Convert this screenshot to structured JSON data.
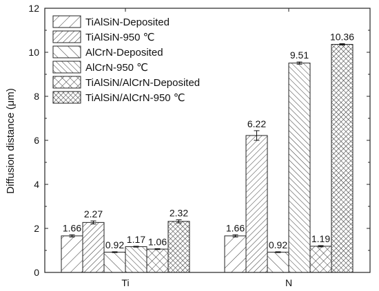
{
  "chart_data": {
    "type": "bar",
    "title": "",
    "xlabel": "",
    "ylabel": "Diffusion distance (μm)",
    "ylim": [
      0,
      12
    ],
    "yticks": [
      0,
      2,
      4,
      6,
      8,
      10,
      12
    ],
    "categories": [
      "Ti",
      "N"
    ],
    "legend_position": "top-left",
    "grid": false,
    "series": [
      {
        "name": "TiAlSiN-Deposited",
        "pattern": "hatch-fwd-wide",
        "values": [
          1.66,
          1.66
        ],
        "errors": [
          0.05,
          0.05
        ],
        "labels": [
          "1.66",
          "1.66"
        ]
      },
      {
        "name": "TiAlSiN-950 ℃",
        "pattern": "hatch-fwd-dense",
        "values": [
          2.27,
          6.22
        ],
        "errors": [
          0.07,
          0.22
        ],
        "labels": [
          "2.27",
          "6.22"
        ]
      },
      {
        "name": "AlCrN-Deposited",
        "pattern": "hatch-back-wide",
        "values": [
          0.92,
          0.92
        ],
        "errors": [
          0.02,
          0.02
        ],
        "labels": [
          "0.92",
          "0.92"
        ]
      },
      {
        "name": "AlCrN-950 ℃",
        "pattern": "hatch-back-dense",
        "values": [
          1.17,
          9.51
        ],
        "errors": [
          0.02,
          0.05
        ],
        "labels": [
          "1.17",
          "9.51"
        ]
      },
      {
        "name": "TiAlSiN/AlCrN-Deposited",
        "pattern": "cross-wide",
        "values": [
          1.06,
          1.19
        ],
        "errors": [
          0.02,
          0.03
        ],
        "labels": [
          "1.06",
          "1.19"
        ]
      },
      {
        "name": "TiAlSiN/AlCrN-950 ℃",
        "pattern": "cross-dense",
        "values": [
          2.32,
          10.36
        ],
        "errors": [
          0.07,
          0.03
        ],
        "labels": [
          "2.32",
          "10.36"
        ]
      }
    ]
  }
}
